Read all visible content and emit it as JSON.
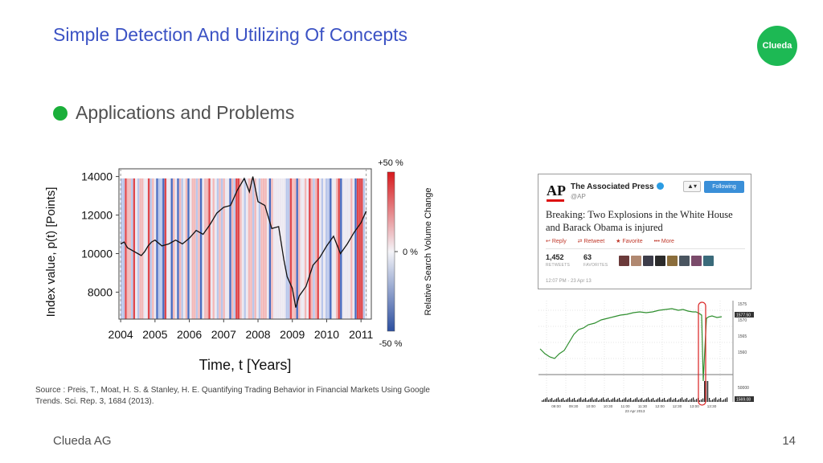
{
  "title": "Simple Detection And Utilizing Of Concepts",
  "logo_text": "Clueda",
  "bullet": "Applications and Problems",
  "source": "Source : Preis, T., Moat, H. S. & Stanley, H. E. Quantifying Trading Behavior in Financial Markets Using Google Trends. Sci. Rep. 3, 1684 (2013).",
  "footer": {
    "left": "Clueda AG",
    "page": "14"
  },
  "chart_data": [
    {
      "type": "line",
      "xlabel": "Time, t [Years]",
      "ylabel": "Index value, p(t) [Points]",
      "x_ticks": [
        "2004",
        "2005",
        "2006",
        "2007",
        "2008",
        "2009",
        "2010",
        "2011"
      ],
      "y_ticks": [
        14000,
        12000,
        10000,
        8000
      ],
      "xlim": [
        2003.95,
        2011.3
      ],
      "ylim": [
        6600,
        14400
      ],
      "series": [
        {
          "x": [
            2004.0,
            2004.1,
            2004.2,
            2004.3,
            2004.4,
            2004.5,
            2004.6,
            2004.7,
            2004.8,
            2004.9,
            2005.0,
            2005.2,
            2005.4,
            2005.6,
            2005.8,
            2006.0,
            2006.2,
            2006.4,
            2006.6,
            2006.8,
            2007.0,
            2007.2,
            2007.4,
            2007.6,
            2007.75,
            2007.85,
            2008.0,
            2008.2,
            2008.4,
            2008.6,
            2008.75,
            2008.85,
            2009.0,
            2009.1,
            2009.2,
            2009.4,
            2009.6,
            2009.8,
            2010.0,
            2010.2,
            2010.4,
            2010.6,
            2010.8,
            2011.0,
            2011.15
          ],
          "y": [
            10500,
            10600,
            10300,
            10200,
            10100,
            10000,
            9900,
            10100,
            10400,
            10600,
            10700,
            10400,
            10500,
            10700,
            10500,
            10800,
            11200,
            11000,
            11500,
            12100,
            12400,
            12500,
            13300,
            13900,
            13200,
            14000,
            12700,
            12500,
            11300,
            11400,
            9700,
            8800,
            8200,
            7200,
            7800,
            8300,
            9400,
            9800,
            10400,
            10900,
            10000,
            10500,
            11100,
            11600,
            12200
          ]
        }
      ],
      "colorbar": {
        "max_label": "+50 %",
        "mid_label": "0 %",
        "min_label": "-50 %",
        "title": "Relative Search Volume Change"
      }
    },
    {
      "type": "line",
      "x_ticks": [
        "09:00",
        "09:30",
        "10:00",
        "10:30",
        "11:00",
        "11:30",
        "12:00",
        "12:30",
        "13:00",
        "13:30"
      ],
      "date_label": "23 Apr 2013",
      "y_ticks": [
        "1575",
        "1570",
        "1565",
        "1560"
      ],
      "price_tag": "1577.50",
      "volume_tick": "50000",
      "volume_tag": "1569.08"
    }
  ],
  "tweet": {
    "logo": "AP",
    "name": "The Associated Press",
    "handle": "@AP",
    "follow_label": "Following",
    "user_btn": "▲▾",
    "text": "Breaking: Two Explosions in the White House and Barack Obama is injured",
    "actions": [
      "Reply",
      "Retweet",
      "Favorite",
      "More"
    ],
    "retweets": "1,452",
    "retweets_label": "RETWEETS",
    "favorites": "63",
    "favorites_label": "FAVORITES",
    "timestamp": "12:07 PM - 23 Apr 13"
  },
  "colors": {
    "title": "#3b52c4",
    "accent": "#1aaf3a",
    "logo_bg": "#1db954"
  }
}
